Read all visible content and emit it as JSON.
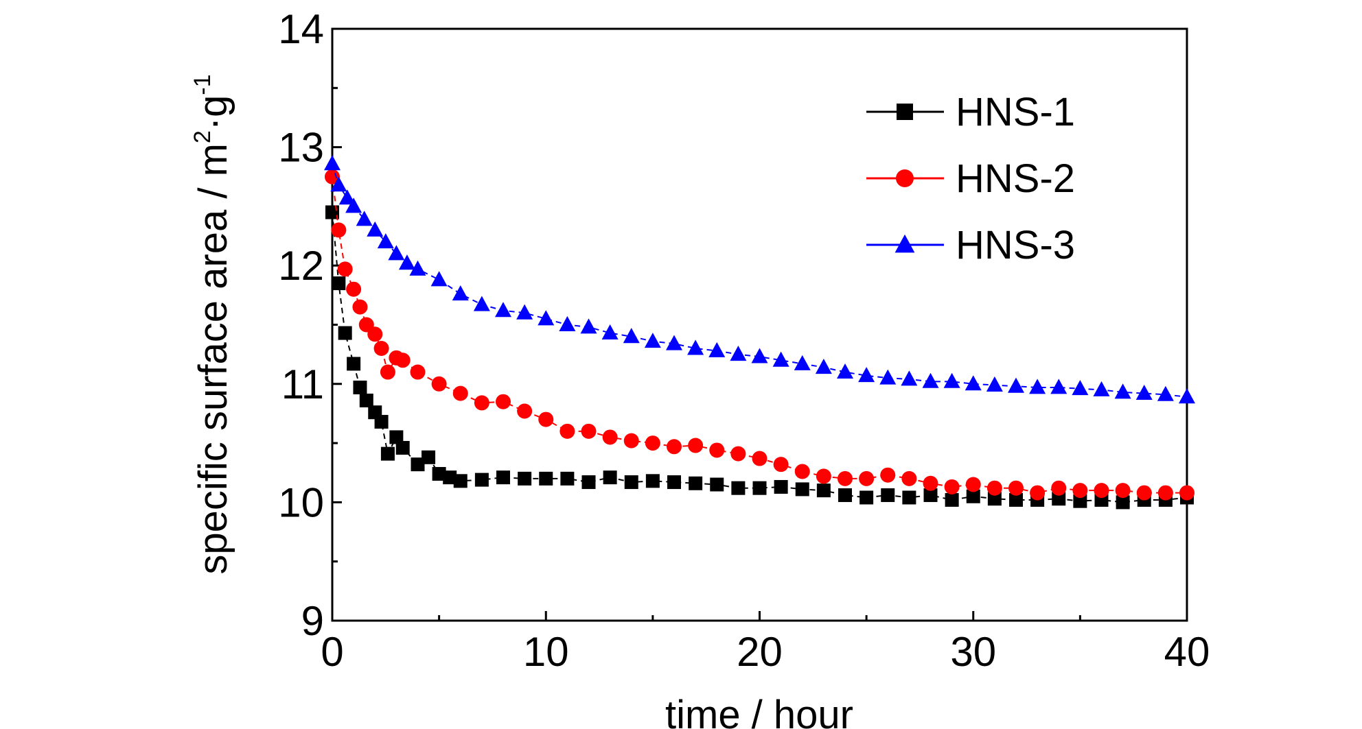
{
  "chart_data": {
    "type": "scatter",
    "title": "",
    "xlabel": "time / hour",
    "ylabel": {
      "main": "specific surface area / m",
      "sup1": "2",
      "mid": "·g",
      "sup2": "-1"
    },
    "xlim": [
      0,
      40
    ],
    "ylim": [
      9,
      14
    ],
    "x_ticks": [
      "0",
      "10",
      "20",
      "30",
      "40"
    ],
    "y_ticks": [
      "9",
      "10",
      "11",
      "12",
      "13",
      "14"
    ],
    "grid": false,
    "legend_position": "top-right",
    "series": [
      {
        "name": "HNS-1",
        "color": "#000000",
        "marker": "square",
        "line": "dashed",
        "x": [
          0,
          0.3,
          0.6,
          1.0,
          1.3,
          1.6,
          2.0,
          2.3,
          2.6,
          3.0,
          3.3,
          4.0,
          4.5,
          5.0,
          5.5,
          6.0,
          7.0,
          8.0,
          9.0,
          10.0,
          11.0,
          12.0,
          13.0,
          14.0,
          15.0,
          16.0,
          17.0,
          18.0,
          19.0,
          20.0,
          21.0,
          22.0,
          23.0,
          24.0,
          25.0,
          26.0,
          27.0,
          28.0,
          29.0,
          30.0,
          31.0,
          32.0,
          33.0,
          34.0,
          35.0,
          36.0,
          37.0,
          38.0,
          39.0,
          40.0
        ],
        "y": [
          12.45,
          11.85,
          11.43,
          11.17,
          10.97,
          10.86,
          10.76,
          10.68,
          10.41,
          10.55,
          10.46,
          10.32,
          10.38,
          10.24,
          10.21,
          10.18,
          10.19,
          10.21,
          10.2,
          10.2,
          10.2,
          10.17,
          10.21,
          10.17,
          10.18,
          10.17,
          10.16,
          10.15,
          10.12,
          10.12,
          10.13,
          10.11,
          10.1,
          10.06,
          10.04,
          10.06,
          10.04,
          10.06,
          10.02,
          10.05,
          10.03,
          10.02,
          10.02,
          10.03,
          10.01,
          10.02,
          10.0,
          10.02,
          10.02,
          10.04
        ]
      },
      {
        "name": "HNS-2",
        "color": "#ff0000",
        "marker": "circle",
        "line": "dashed",
        "x": [
          0,
          0.3,
          0.6,
          1.0,
          1.3,
          1.6,
          2.0,
          2.3,
          2.6,
          3.0,
          3.3,
          4.0,
          5.0,
          6.0,
          7.0,
          8.0,
          9.0,
          10.0,
          11.0,
          12.0,
          13.0,
          14.0,
          15.0,
          16.0,
          17.0,
          18.0,
          19.0,
          20.0,
          21.0,
          22.0,
          23.0,
          24.0,
          25.0,
          26.0,
          27.0,
          28.0,
          29.0,
          30.0,
          31.0,
          32.0,
          33.0,
          34.0,
          35.0,
          36.0,
          37.0,
          38.0,
          39.0,
          40.0
        ],
        "y": [
          12.75,
          12.3,
          11.97,
          11.8,
          11.65,
          11.5,
          11.42,
          11.3,
          11.1,
          11.22,
          11.2,
          11.1,
          11.0,
          10.92,
          10.84,
          10.85,
          10.77,
          10.7,
          10.6,
          10.6,
          10.55,
          10.52,
          10.5,
          10.47,
          10.48,
          10.44,
          10.41,
          10.37,
          10.32,
          10.26,
          10.22,
          10.2,
          10.2,
          10.23,
          10.2,
          10.16,
          10.13,
          10.15,
          10.12,
          10.12,
          10.08,
          10.12,
          10.1,
          10.1,
          10.1,
          10.08,
          10.08,
          10.08
        ]
      },
      {
        "name": "HNS-3",
        "color": "#0000ff",
        "marker": "triangle",
        "line": "dashed",
        "x": [
          0,
          0.3,
          0.7,
          1.0,
          1.5,
          2.0,
          2.5,
          3.0,
          3.5,
          4.0,
          5.0,
          6.0,
          7.0,
          8.0,
          9.0,
          10.0,
          11.0,
          12.0,
          13.0,
          14.0,
          15.0,
          16.0,
          17.0,
          18.0,
          19.0,
          20.0,
          21.0,
          22.0,
          23.0,
          24.0,
          25.0,
          26.0,
          27.0,
          28.0,
          29.0,
          30.0,
          31.0,
          32.0,
          33.0,
          34.0,
          35.0,
          36.0,
          37.0,
          38.0,
          39.0,
          40.0
        ],
        "y": [
          12.86,
          12.68,
          12.57,
          12.5,
          12.39,
          12.3,
          12.2,
          12.1,
          12.02,
          11.97,
          11.88,
          11.76,
          11.67,
          11.62,
          11.6,
          11.55,
          11.5,
          11.48,
          11.43,
          11.4,
          11.36,
          11.34,
          11.3,
          11.28,
          11.25,
          11.23,
          11.2,
          11.17,
          11.14,
          11.1,
          11.07,
          11.05,
          11.04,
          11.02,
          11.02,
          11.0,
          10.99,
          10.98,
          10.97,
          10.97,
          10.96,
          10.95,
          10.93,
          10.92,
          10.91,
          10.89
        ]
      }
    ]
  }
}
